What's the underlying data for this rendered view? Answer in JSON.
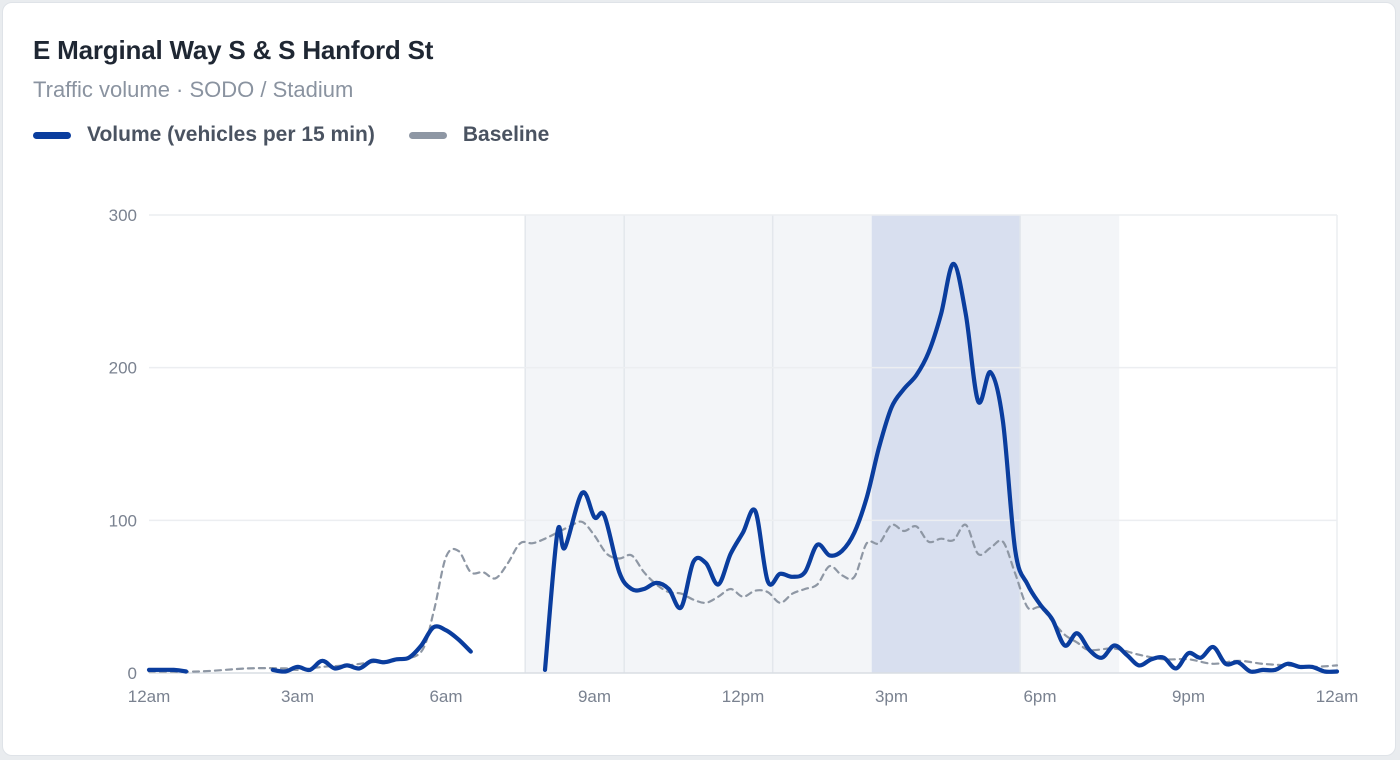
{
  "card": {
    "title": "E Marginal Way S & S Hanford St",
    "subtitle": "Traffic volume · SODO / Stadium"
  },
  "legend": [
    {
      "label": "Volume (vehicles per 15 min)",
      "color": "#0a3d9e"
    },
    {
      "label": "Baseline",
      "color": "#8e97a4"
    }
  ],
  "chart_data": {
    "type": "line",
    "x_unit": "hours since 12am",
    "xlim": [
      0,
      24
    ],
    "ylim": [
      0,
      300
    ],
    "x_ticks": [
      {
        "x": 0,
        "label": "12am"
      },
      {
        "x": 3,
        "label": "3am"
      },
      {
        "x": 6,
        "label": "6am"
      },
      {
        "x": 9,
        "label": "9am"
      },
      {
        "x": 12,
        "label": "12pm"
      },
      {
        "x": 15,
        "label": "3pm"
      },
      {
        "x": 18,
        "label": "6pm"
      },
      {
        "x": 21,
        "label": "9pm"
      },
      {
        "x": 24,
        "label": "12am"
      }
    ],
    "y_ticks": [
      0,
      100,
      200,
      300
    ],
    "grid": true,
    "shaded_periods": [
      {
        "from": 7.6,
        "to": 9.6,
        "style": "light"
      },
      {
        "from": 9.6,
        "to": 12.6,
        "style": "light"
      },
      {
        "from": 12.6,
        "to": 14.6,
        "style": "light"
      },
      {
        "from": 14.6,
        "to": 17.6,
        "style": "highlight"
      },
      {
        "from": 17.6,
        "to": 19.6,
        "style": "light"
      }
    ],
    "series": [
      {
        "name": "Volume (vehicles per 15 min)",
        "color": "#0a3d9e",
        "style": "solid",
        "segments": [
          [
            [
              0,
              2
            ],
            [
              0.5,
              2
            ],
            [
              0.75,
              1
            ]
          ],
          [
            [
              2.5,
              2
            ],
            [
              2.75,
              1
            ],
            [
              3.0,
              4
            ],
            [
              3.25,
              2
            ],
            [
              3.5,
              8
            ],
            [
              3.75,
              3
            ],
            [
              4.0,
              5
            ],
            [
              4.25,
              3
            ],
            [
              4.5,
              8
            ],
            [
              4.75,
              7
            ],
            [
              5.0,
              9
            ],
            [
              5.25,
              10
            ],
            [
              5.5,
              18
            ],
            [
              5.75,
              30
            ],
            [
              6.0,
              28
            ],
            [
              6.25,
              22
            ],
            [
              6.5,
              14
            ]
          ],
          [
            [
              8.0,
              2
            ],
            [
              8.25,
              92
            ],
            [
              8.4,
              82
            ],
            [
              8.75,
              118
            ],
            [
              9.0,
              102
            ],
            [
              9.2,
              103
            ],
            [
              9.5,
              66
            ],
            [
              9.75,
              55
            ],
            [
              10.0,
              55
            ],
            [
              10.25,
              59
            ],
            [
              10.5,
              55
            ],
            [
              10.75,
              43
            ],
            [
              11.0,
              73
            ],
            [
              11.25,
              72
            ],
            [
              11.5,
              58
            ],
            [
              11.75,
              78
            ],
            [
              12.0,
              92
            ],
            [
              12.25,
              106
            ],
            [
              12.5,
              60
            ],
            [
              12.75,
              65
            ],
            [
              13.0,
              63
            ],
            [
              13.25,
              66
            ],
            [
              13.5,
              84
            ],
            [
              13.75,
              77
            ],
            [
              14.0,
              80
            ],
            [
              14.25,
              92
            ],
            [
              14.5,
              115
            ],
            [
              14.75,
              148
            ],
            [
              15.0,
              174
            ],
            [
              15.25,
              186
            ],
            [
              15.5,
              195
            ],
            [
              15.75,
              210
            ],
            [
              16.0,
              235
            ],
            [
              16.25,
              268
            ],
            [
              16.5,
              235
            ],
            [
              16.75,
              178
            ],
            [
              17.0,
              197
            ],
            [
              17.25,
              165
            ],
            [
              17.5,
              80
            ],
            [
              17.75,
              58
            ],
            [
              18.0,
              45
            ],
            [
              18.25,
              35
            ],
            [
              18.5,
              18
            ],
            [
              18.75,
              26
            ],
            [
              19.0,
              15
            ],
            [
              19.25,
              10
            ],
            [
              19.5,
              18
            ],
            [
              19.75,
              12
            ],
            [
              20.0,
              5
            ],
            [
              20.25,
              9
            ],
            [
              20.5,
              10
            ],
            [
              20.75,
              3
            ],
            [
              21.0,
              13
            ],
            [
              21.25,
              10
            ],
            [
              21.5,
              17
            ],
            [
              21.75,
              6
            ],
            [
              22.0,
              7
            ],
            [
              22.25,
              1
            ],
            [
              22.5,
              2
            ],
            [
              22.75,
              2
            ],
            [
              23.0,
              6
            ],
            [
              23.25,
              4
            ],
            [
              23.5,
              4
            ],
            [
              23.75,
              1
            ],
            [
              24.0,
              1
            ]
          ]
        ]
      },
      {
        "name": "Baseline",
        "color": "#8e97a4",
        "style": "dashed",
        "segments": [
          [
            [
              0,
              1
            ],
            [
              1.0,
              1
            ],
            [
              2.0,
              3
            ],
            [
              2.75,
              3
            ],
            [
              3.0,
              2
            ],
            [
              3.5,
              4
            ],
            [
              4.0,
              5
            ],
            [
              4.5,
              7
            ],
            [
              5.0,
              9
            ],
            [
              5.5,
              14
            ],
            [
              5.75,
              40
            ],
            [
              6.0,
              76
            ],
            [
              6.25,
              80
            ],
            [
              6.5,
              66
            ],
            [
              6.75,
              66
            ],
            [
              7.0,
              62
            ],
            [
              7.25,
              72
            ],
            [
              7.5,
              85
            ],
            [
              7.75,
              85
            ],
            [
              8.0,
              88
            ],
            [
              8.25,
              92
            ],
            [
              8.5,
              96
            ],
            [
              8.75,
              99
            ],
            [
              9.0,
              90
            ],
            [
              9.25,
              78
            ],
            [
              9.5,
              75
            ],
            [
              9.75,
              77
            ],
            [
              10.0,
              66
            ],
            [
              10.25,
              58
            ],
            [
              10.5,
              53
            ],
            [
              10.75,
              52
            ],
            [
              11.0,
              48
            ],
            [
              11.25,
              46
            ],
            [
              11.5,
              50
            ],
            [
              11.75,
              55
            ],
            [
              12.0,
              50
            ],
            [
              12.25,
              54
            ],
            [
              12.5,
              53
            ],
            [
              12.75,
              46
            ],
            [
              13.0,
              52
            ],
            [
              13.25,
              55
            ],
            [
              13.5,
              58
            ],
            [
              13.75,
              70
            ],
            [
              14.0,
              64
            ],
            [
              14.25,
              63
            ],
            [
              14.5,
              85
            ],
            [
              14.75,
              85
            ],
            [
              15.0,
              97
            ],
            [
              15.25,
              93
            ],
            [
              15.5,
              96
            ],
            [
              15.75,
              86
            ],
            [
              16.0,
              88
            ],
            [
              16.25,
              87
            ],
            [
              16.5,
              97
            ],
            [
              16.75,
              78
            ],
            [
              17.0,
              82
            ],
            [
              17.25,
              86
            ],
            [
              17.5,
              65
            ],
            [
              17.75,
              43
            ],
            [
              18.0,
              43
            ],
            [
              18.25,
              34
            ],
            [
              18.5,
              25
            ],
            [
              18.75,
              20
            ],
            [
              19.0,
              15
            ],
            [
              19.5,
              16
            ],
            [
              20.0,
              12
            ],
            [
              20.5,
              9
            ],
            [
              21.0,
              9
            ],
            [
              21.5,
              6
            ],
            [
              22.0,
              8
            ],
            [
              22.5,
              6
            ],
            [
              23.0,
              5
            ],
            [
              23.5,
              4
            ],
            [
              24.0,
              5
            ]
          ]
        ]
      }
    ]
  }
}
